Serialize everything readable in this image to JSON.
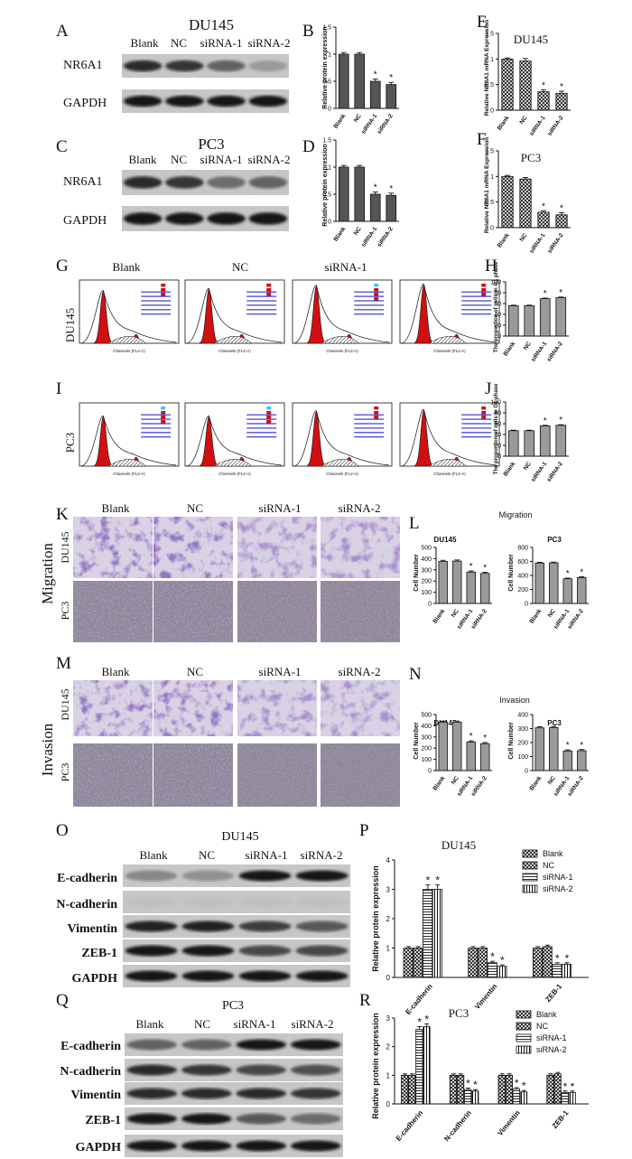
{
  "figure": {
    "panel_letters": [
      "A",
      "B",
      "C",
      "D",
      "E",
      "F",
      "G",
      "H",
      "I",
      "J",
      "K",
      "L",
      "M",
      "N",
      "O",
      "P",
      "Q",
      "R"
    ],
    "cell_lines": {
      "du145": "DU145",
      "pc3": "PC3"
    },
    "groups": [
      "Blank",
      "NC",
      "siRNA-1",
      "siRNA-2"
    ],
    "proteins": {
      "nr6a1": "NR6A1",
      "gapdh": "GAPDH",
      "ecad": "E-cadherin",
      "ncad": "N-cadherin",
      "vim": "Vimentin",
      "zeb1": "ZEB-1"
    },
    "axis": {
      "protein": "Relative protein expression",
      "mrna": "Relative NR6A1 mRNA Expression",
      "g1": "The proportion of cells in G1 phase",
      "cell_number": "Cell Number"
    },
    "flow_x_label": "Channels (FL2-A)",
    "side_labels": {
      "migration": "Migration",
      "invasion": "Invasion"
    },
    "titles": {
      "migration": "Migration",
      "invasion": "Invasion"
    },
    "star": "*"
  },
  "colors": {
    "bar_dark": "#555555",
    "bar_light": "#9a9a9a",
    "flow_red": "#d01010",
    "stain": "#5a3d9c",
    "bg_pc3": "#8e8a92"
  },
  "chart_data": [
    {
      "id": "B",
      "type": "bar",
      "title": "",
      "categories": [
        "Blank",
        "NC",
        "siRNA-1",
        "siRNA-2"
      ],
      "values": [
        1.0,
        1.0,
        0.5,
        0.44
      ],
      "errors": [
        0.03,
        0.03,
        0.04,
        0.04
      ],
      "ylabel": "Relative protein expression",
      "ylim": [
        0,
        1.5
      ],
      "ticks": [
        0.0,
        0.5,
        1.0,
        1.5
      ],
      "sig": [
        false,
        false,
        true,
        true
      ]
    },
    {
      "id": "D",
      "type": "bar",
      "title": "",
      "categories": [
        "Blank",
        "NC",
        "siRNA-1",
        "siRNA-2"
      ],
      "values": [
        1.0,
        1.0,
        0.5,
        0.48
      ],
      "errors": [
        0.03,
        0.03,
        0.04,
        0.04
      ],
      "ylabel": "Relative protein expression",
      "ylim": [
        0,
        1.5
      ],
      "ticks": [
        0.0,
        0.5,
        1.0,
        1.5
      ],
      "sig": [
        false,
        false,
        true,
        true
      ]
    },
    {
      "id": "E",
      "type": "bar",
      "title": "DU145",
      "categories": [
        "Blank",
        "NC",
        "siRNA-1",
        "siRNA-2"
      ],
      "values": [
        1.0,
        0.96,
        0.36,
        0.33
      ],
      "errors": [
        0.02,
        0.05,
        0.04,
        0.04
      ],
      "ylabel": "Relative NR6A1 mRNA Expression",
      "ylim": [
        0,
        1.5
      ],
      "ticks": [
        0.0,
        0.5,
        1.0,
        1.5
      ],
      "sig": [
        false,
        false,
        true,
        true
      ]
    },
    {
      "id": "F",
      "type": "bar",
      "title": "PC3",
      "categories": [
        "Blank",
        "NC",
        "siRNA-1",
        "siRNA-2"
      ],
      "values": [
        1.0,
        0.95,
        0.3,
        0.25
      ],
      "errors": [
        0.02,
        0.03,
        0.03,
        0.04
      ],
      "ylabel": "Relative NR6A1 mRNA Expression",
      "ylim": [
        0,
        1.5
      ],
      "ticks": [
        0.0,
        0.5,
        1.0,
        1.5
      ],
      "sig": [
        false,
        false,
        true,
        true
      ]
    },
    {
      "id": "H",
      "type": "bar",
      "title": "",
      "categories": [
        "Blank",
        "NC",
        "siRNA-1",
        "siRNA-2"
      ],
      "values": [
        56,
        56,
        69,
        71
      ],
      "errors": [
        1,
        1,
        1,
        1
      ],
      "ylabel": "The proportion of cells in G1 phase",
      "ylim": [
        0,
        100
      ],
      "ticks": [
        0,
        20,
        40,
        60,
        80,
        100
      ],
      "sig": [
        false,
        false,
        true,
        true
      ]
    },
    {
      "id": "J",
      "type": "bar",
      "title": "",
      "categories": [
        "Blank",
        "NC",
        "siRNA-1",
        "siRNA-2"
      ],
      "values": [
        47,
        47,
        56,
        57
      ],
      "errors": [
        1,
        1,
        1,
        1
      ],
      "ylabel": "The proportion of cells in G1 phase",
      "ylim": [
        0,
        100
      ],
      "ticks": [
        0,
        20,
        40,
        60,
        80,
        100
      ],
      "sig": [
        false,
        false,
        true,
        true
      ]
    },
    {
      "id": "L1",
      "type": "bar",
      "title": "DU145",
      "categories": [
        "Blank",
        "NC",
        "siRNA-1",
        "siRNA-2"
      ],
      "values": [
        375,
        378,
        280,
        268
      ],
      "errors": [
        10,
        10,
        10,
        10
      ],
      "ylabel": "Cell Number",
      "ylim": [
        0,
        500
      ],
      "ticks": [
        0,
        100,
        200,
        300,
        400,
        500
      ],
      "sig": [
        false,
        false,
        true,
        true
      ]
    },
    {
      "id": "L2",
      "type": "bar",
      "title": "PC3",
      "categories": [
        "Blank",
        "NC",
        "siRNA-1",
        "siRNA-2"
      ],
      "values": [
        578,
        580,
        352,
        370
      ],
      "errors": [
        10,
        10,
        10,
        10
      ],
      "ylabel": "Cell Number",
      "ylim": [
        0,
        800
      ],
      "ticks": [
        0,
        200,
        400,
        600,
        800
      ],
      "sig": [
        false,
        false,
        true,
        true
      ]
    },
    {
      "id": "N1",
      "type": "bar",
      "title": "DU145",
      "categories": [
        "Blank",
        "NC",
        "siRNA-1",
        "siRNA-2"
      ],
      "values": [
        430,
        432,
        255,
        240
      ],
      "errors": [
        10,
        10,
        10,
        10
      ],
      "ylabel": "Cell Number",
      "ylim": [
        0,
        500
      ],
      "ticks": [
        0,
        100,
        200,
        300,
        400,
        500
      ],
      "sig": [
        false,
        false,
        true,
        true
      ]
    },
    {
      "id": "N2",
      "type": "bar",
      "title": "PC3",
      "categories": [
        "Blank",
        "NC",
        "siRNA-1",
        "siRNA-2"
      ],
      "values": [
        305,
        307,
        140,
        142
      ],
      "errors": [
        8,
        8,
        8,
        8
      ],
      "ylabel": "Cell Number",
      "ylim": [
        0,
        400
      ],
      "ticks": [
        0,
        100,
        200,
        300,
        400
      ],
      "sig": [
        false,
        false,
        true,
        true
      ]
    },
    {
      "id": "P",
      "type": "grouped-bar",
      "title": "DU145",
      "categories": [
        "E-cadherin",
        "Vimentin",
        "ZEB-1"
      ],
      "series": [
        {
          "name": "Blank",
          "values": [
            1.0,
            1.0,
            1.0
          ],
          "errors": [
            0.05,
            0.05,
            0.05
          ],
          "sig": [
            false,
            false,
            false
          ]
        },
        {
          "name": "NC",
          "values": [
            1.0,
            1.0,
            1.05
          ],
          "errors": [
            0.05,
            0.05,
            0.05
          ],
          "sig": [
            false,
            false,
            false
          ]
        },
        {
          "name": "siRNA-1",
          "values": [
            3.0,
            0.5,
            0.45
          ],
          "errors": [
            0.15,
            0.05,
            0.05
          ],
          "sig": [
            true,
            true,
            true
          ]
        },
        {
          "name": "siRNA-2",
          "values": [
            3.0,
            0.38,
            0.45
          ],
          "errors": [
            0.15,
            0.05,
            0.05
          ],
          "sig": [
            true,
            true,
            true
          ]
        }
      ],
      "ylabel": "Relative protein expression",
      "ylim": [
        0,
        4
      ],
      "ticks": [
        0,
        1,
        2,
        3,
        4
      ],
      "legend": "top-right"
    },
    {
      "id": "R",
      "type": "grouped-bar",
      "title": "PC3",
      "categories": [
        "E-cadherin",
        "N-cadherin",
        "Vimentin",
        "ZEB-1"
      ],
      "series": [
        {
          "name": "Blank",
          "values": [
            1.0,
            1.0,
            1.0,
            1.0
          ],
          "errors": [
            0.05,
            0.05,
            0.05,
            0.05
          ],
          "sig": [
            false,
            false,
            false,
            false
          ]
        },
        {
          "name": "NC",
          "values": [
            1.0,
            1.0,
            1.0,
            1.05
          ],
          "errors": [
            0.05,
            0.05,
            0.05,
            0.05
          ],
          "sig": [
            false,
            false,
            false,
            false
          ]
        },
        {
          "name": "siRNA-1",
          "values": [
            2.6,
            0.5,
            0.52,
            0.4
          ],
          "errors": [
            0.1,
            0.05,
            0.05,
            0.05
          ],
          "sig": [
            true,
            true,
            true,
            true
          ]
        },
        {
          "name": "siRNA-2",
          "values": [
            2.7,
            0.45,
            0.42,
            0.4
          ],
          "errors": [
            0.1,
            0.05,
            0.05,
            0.05
          ],
          "sig": [
            true,
            true,
            true,
            true
          ]
        }
      ],
      "ylabel": "Relative protein expression",
      "ylim": [
        0,
        3
      ],
      "ticks": [
        0,
        1,
        2,
        3
      ],
      "legend": "top-right"
    }
  ]
}
